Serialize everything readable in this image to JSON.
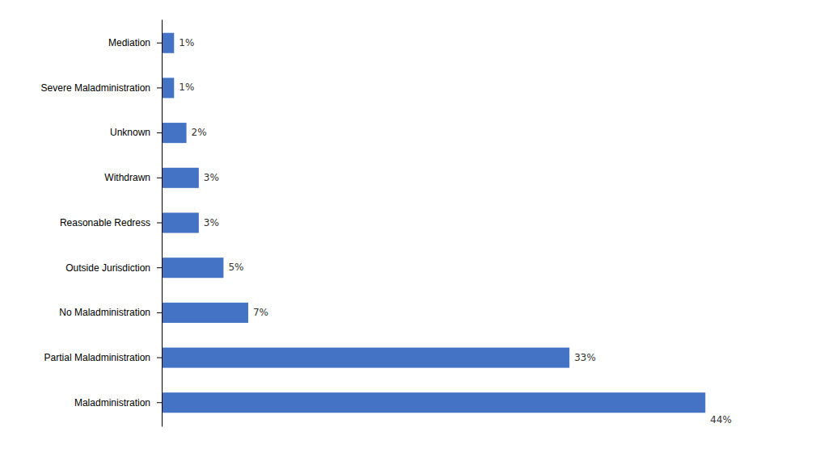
{
  "chart_data": {
    "type": "bar",
    "orientation": "horizontal",
    "categories": [
      "Maladministration",
      "Partial Maladministration",
      "No Maladministration",
      "Outside Jurisdiction",
      "Reasonable Redress",
      "Withdrawn",
      "Unknown",
      "Severe Maladministration",
      "Mediation"
    ],
    "values": [
      44,
      33,
      7,
      5,
      3,
      3,
      2,
      1,
      1
    ],
    "value_labels": [
      "44%",
      "33%",
      "7%",
      "5%",
      "3%",
      "3%",
      "2%",
      "1%",
      "1%"
    ],
    "data_labels": true,
    "color": "#4472C4",
    "xlim": [
      0,
      50
    ],
    "grid": false,
    "tick_labels": "y"
  }
}
